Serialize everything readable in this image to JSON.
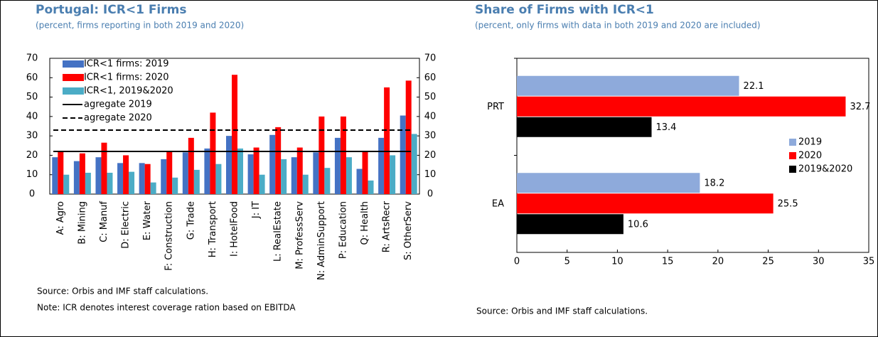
{
  "chart_data": [
    {
      "type": "bar",
      "title": "Portugal: ICR<1 Firms",
      "subtitle": "(percent, firms reporting in both 2019 and 2020)",
      "categories": [
        "A: Agro",
        "B: Mining",
        "C: Manuf",
        "D: Electric",
        "E: Water",
        "F: Construction",
        "G: Trade",
        "H: Transport",
        "I: HotelFood",
        "J: IT",
        "L: RealEstate",
        "M: ProfessServ",
        "N: AdminSupport",
        "P: Education",
        "Q: Health",
        "R: ArtsRecr",
        "S: OtherServ"
      ],
      "series": [
        {
          "name": "ICR<1 firms: 2019",
          "color": "#4472c4",
          "values": [
            19,
            17,
            19,
            16,
            16,
            18,
            21.5,
            23.5,
            30,
            20.5,
            30.5,
            19,
            21.5,
            29,
            13,
            29,
            40.5
          ]
        },
        {
          "name": "ICR<1 firms: 2020",
          "color": "#ff0000",
          "values": [
            22,
            21,
            26.5,
            20,
            15.5,
            22,
            29,
            42,
            61.5,
            24,
            34.5,
            24,
            40,
            40,
            22,
            55,
            58.5
          ]
        },
        {
          "name": "ICR<1, 2019&2020",
          "color": "#4bacc6",
          "values": [
            10,
            11,
            11,
            11.5,
            6,
            8.5,
            12.5,
            15.5,
            23.5,
            10,
            18,
            10,
            13.5,
            19,
            7,
            20,
            31
          ]
        }
      ],
      "reference_lines": [
        {
          "name": "agregate 2019",
          "value": 22,
          "style": "solid",
          "color": "#000000"
        },
        {
          "name": "agregate 2020",
          "value": 33,
          "style": "dashed",
          "color": "#000000"
        }
      ],
      "ylim": [
        0,
        70
      ],
      "yticks": [
        0,
        10,
        20,
        30,
        40,
        50,
        60,
        70
      ],
      "y2lim": [
        0,
        70
      ],
      "y2ticks": [
        0,
        10,
        20,
        30,
        40,
        50,
        60,
        70
      ],
      "legend": "upper left",
      "notes": [
        "Source: Orbis and IMF staff calculations.",
        "Note: ICR denotes interest coverage ration based on EBITDA"
      ]
    },
    {
      "type": "barh",
      "title": "Share of Firms with ICR<1",
      "subtitle": "(percent, only firms with data in both 2019 and 2020 are included)",
      "categories": [
        "PRT",
        "EA"
      ],
      "series": [
        {
          "name": "2019",
          "color": "#8eaadb",
          "values": [
            22.1,
            18.2
          ]
        },
        {
          "name": "2020",
          "color": "#ff0000",
          "values": [
            32.7,
            25.5
          ]
        },
        {
          "name": "2019&2020",
          "color": "#000000",
          "values": [
            13.4,
            10.6
          ]
        }
      ],
      "xlim": [
        0,
        35
      ],
      "xticks": [
        0,
        5,
        10,
        15,
        20,
        25,
        30,
        35
      ],
      "legend": "right",
      "notes": [
        "Source: Orbis and IMF staff calculations."
      ]
    }
  ]
}
